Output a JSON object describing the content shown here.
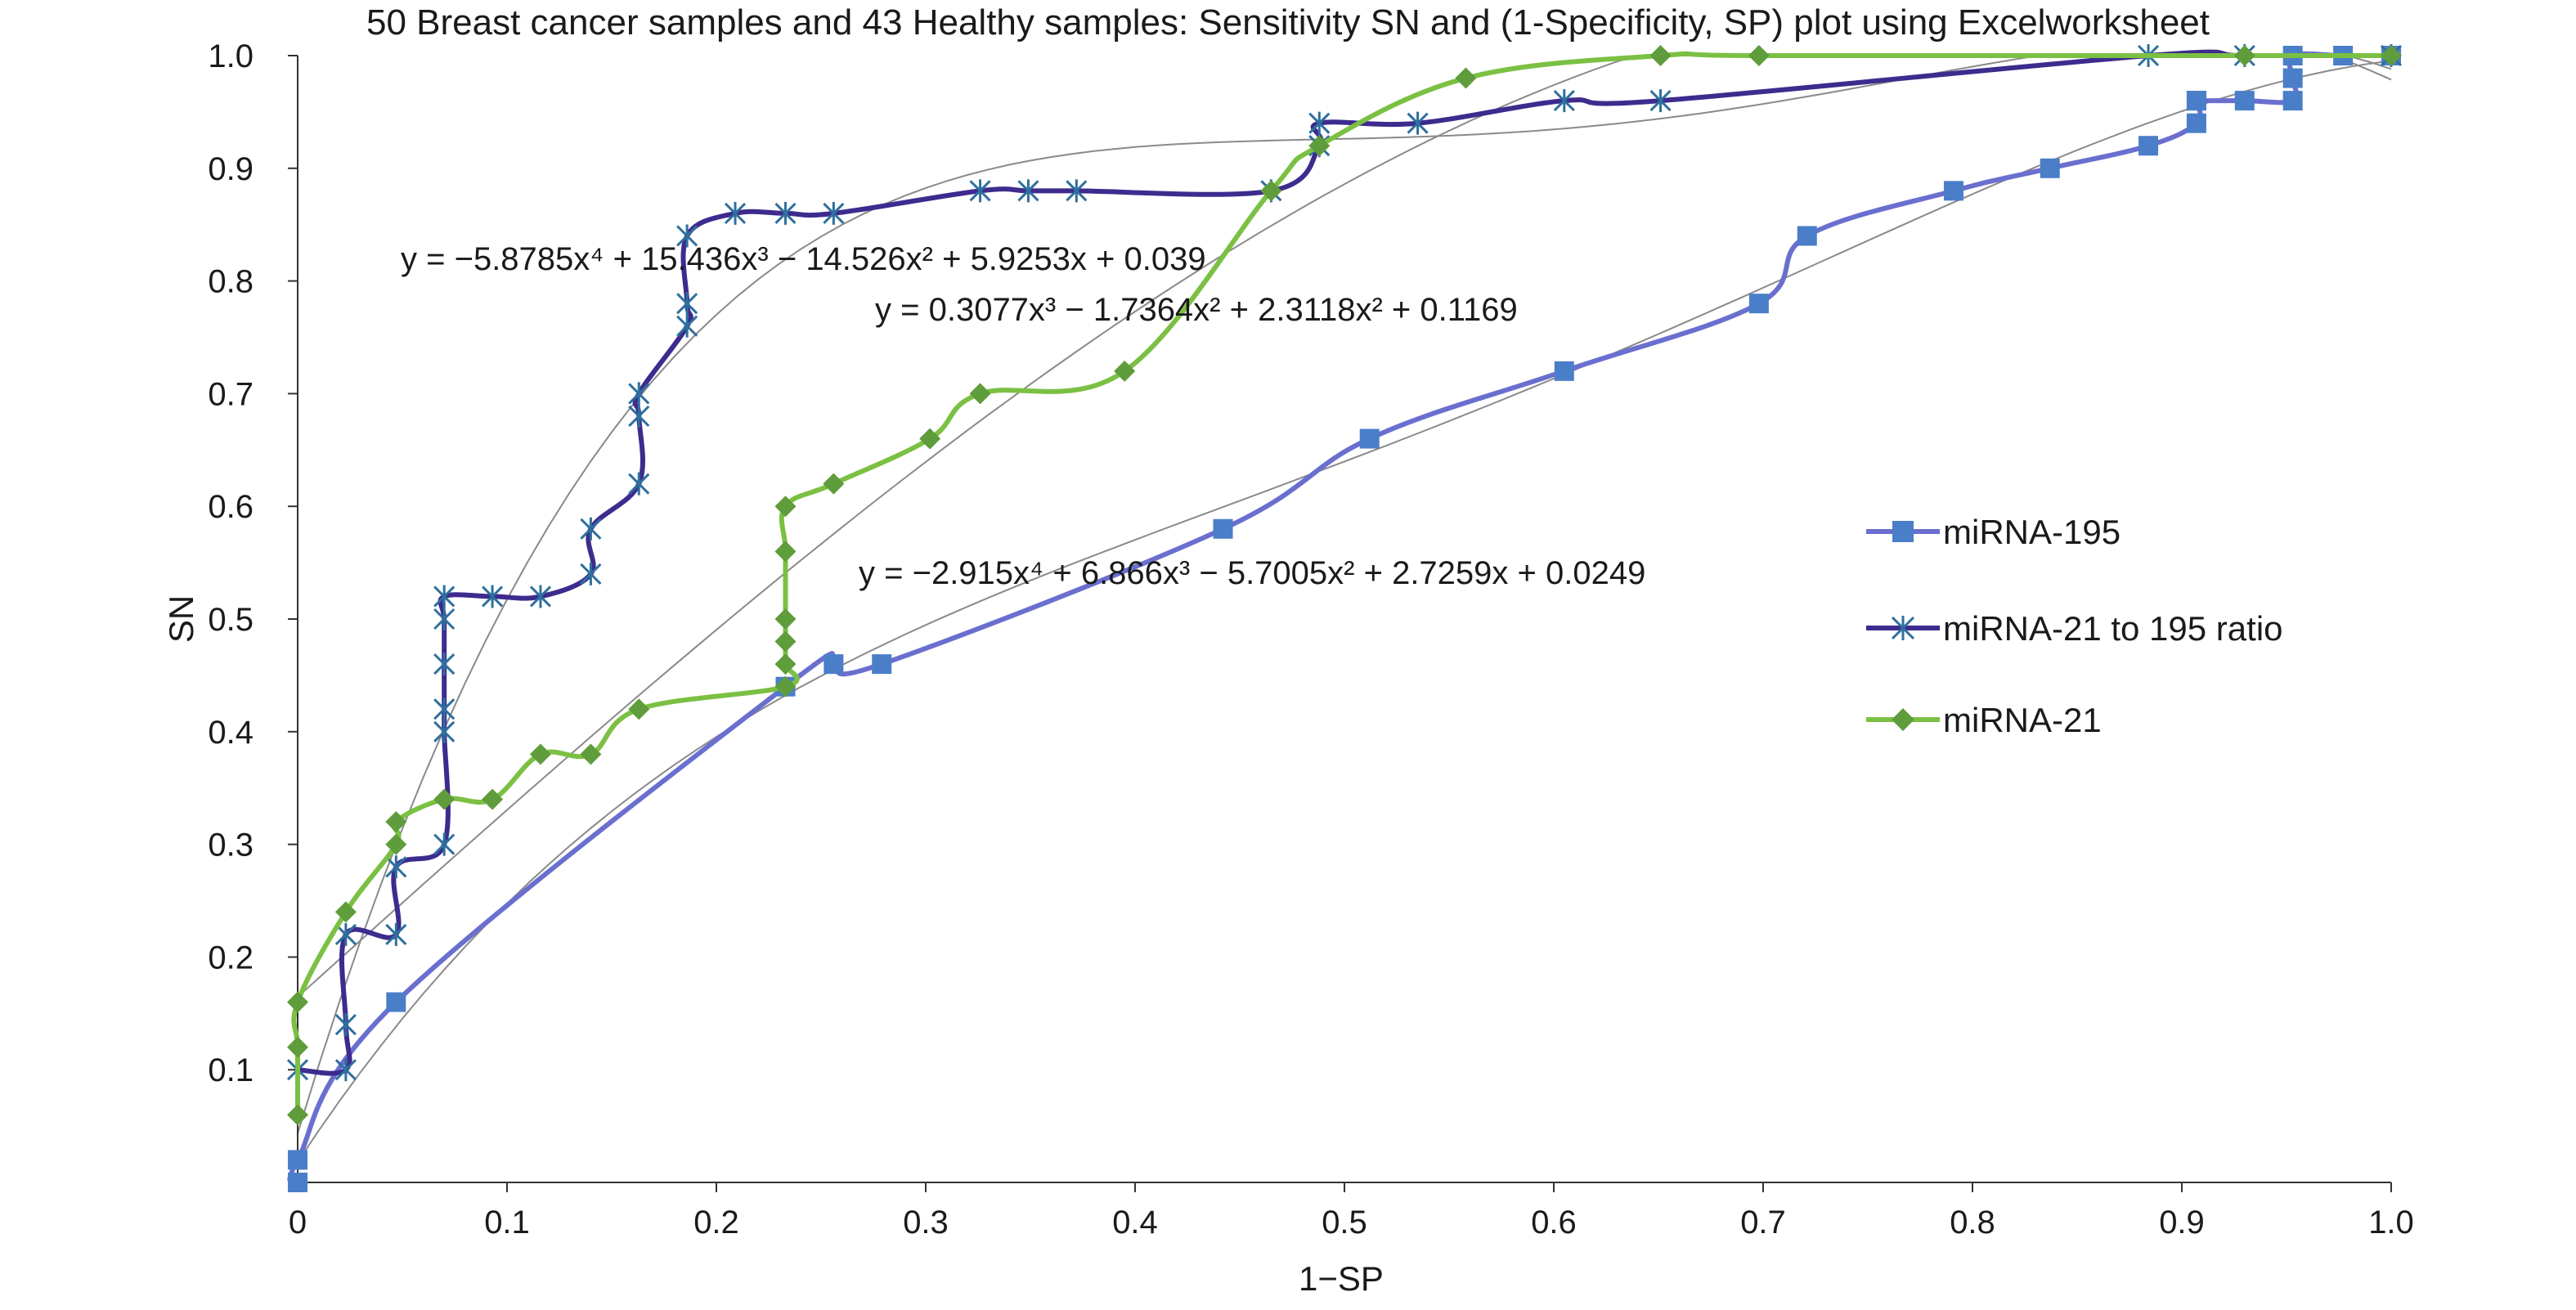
{
  "chart_data": {
    "type": "line",
    "title": "50 Breast cancer samples and 43 Healthy samples: Sensitivity SN and (1-Specificity, SP) plot using Excelworksheet",
    "xlabel": "1−SP",
    "ylabel": "SN",
    "xlim": [
      0,
      1
    ],
    "ylim": [
      0,
      1
    ],
    "x_ticks": [
      "0",
      "0.1",
      "0.2",
      "0.3",
      "0.4",
      "0.5",
      "0.6",
      "0.7",
      "0.8",
      "0.9",
      "1.0"
    ],
    "y_ticks": [
      "0.1",
      "0.2",
      "0.3",
      "0.4",
      "0.5",
      "0.6",
      "0.7",
      "0.8",
      "0.9",
      "1.0"
    ],
    "grid": false,
    "legend_position": "right",
    "series": [
      {
        "name": "miRNA-195",
        "color": "#4a7ec8",
        "line_color": "#6a6fcf",
        "marker": "square",
        "x": [
          0,
          0,
          0.047,
          0.233,
          0.256,
          0.279,
          0.442,
          0.512,
          0.605,
          0.698,
          0.721,
          0.791,
          0.837,
          0.884,
          0.907,
          0.907,
          0.907,
          0.93,
          0.953,
          0.953,
          0.953,
          0.977,
          1.0
        ],
        "y": [
          0,
          0.02,
          0.16,
          0.44,
          0.46,
          0.46,
          0.58,
          0.66,
          0.72,
          0.78,
          0.84,
          0.88,
          0.9,
          0.92,
          0.94,
          0.96,
          0.96,
          0.96,
          0.96,
          0.98,
          1.0,
          1.0,
          1.0
        ]
      },
      {
        "name": "miRNA-21  to 195 ratio",
        "color": "#2e6f9e",
        "line_color": "#3d2b8e",
        "marker": "asterisk",
        "x": [
          0,
          0.023,
          0.023,
          0.023,
          0.047,
          0.047,
          0.07,
          0.07,
          0.07,
          0.07,
          0.07,
          0.07,
          0.093,
          0.116,
          0.14,
          0.14,
          0.163,
          0.163,
          0.163,
          0.186,
          0.186,
          0.186,
          0.209,
          0.233,
          0.256,
          0.326,
          0.349,
          0.372,
          0.465,
          0.488,
          0.488,
          0.535,
          0.605,
          0.651,
          0.884,
          0.93,
          1.0
        ],
        "y": [
          0.1,
          0.1,
          0.14,
          0.22,
          0.22,
          0.28,
          0.3,
          0.4,
          0.42,
          0.46,
          0.5,
          0.52,
          0.52,
          0.52,
          0.54,
          0.58,
          0.62,
          0.68,
          0.7,
          0.76,
          0.78,
          0.84,
          0.86,
          0.86,
          0.86,
          0.88,
          0.88,
          0.88,
          0.88,
          0.92,
          0.94,
          0.94,
          0.96,
          0.96,
          1.0,
          1.0,
          1.0
        ]
      },
      {
        "name": "miRNA-21",
        "color": "#5f9c3c",
        "line_color": "#7bc043",
        "marker": "diamond",
        "x": [
          0,
          0,
          0,
          0.023,
          0.047,
          0.047,
          0.07,
          0.093,
          0.116,
          0.14,
          0.163,
          0.233,
          0.233,
          0.233,
          0.233,
          0.233,
          0.233,
          0.256,
          0.302,
          0.326,
          0.395,
          0.465,
          0.488,
          0.558,
          0.651,
          0.698,
          0.93,
          1.0
        ],
        "y": [
          0.06,
          0.12,
          0.16,
          0.24,
          0.3,
          0.32,
          0.34,
          0.34,
          0.38,
          0.38,
          0.42,
          0.44,
          0.46,
          0.48,
          0.5,
          0.56,
          0.6,
          0.62,
          0.66,
          0.7,
          0.72,
          0.88,
          0.92,
          0.98,
          1.0,
          1.0,
          1.0,
          1.0
        ]
      }
    ],
    "trendline_equations": [
      "y = −5.8785x⁴ + 15.436x³ − 14.526x² + 5.9253x + 0.039",
      "y = 0.3077x³ − 1.7364x² + 2.3118x² + 0.1169",
      "y = −2.915x⁴ + 6.866x³ − 5.7005x² + 2.7259x + 0.0249"
    ]
  }
}
